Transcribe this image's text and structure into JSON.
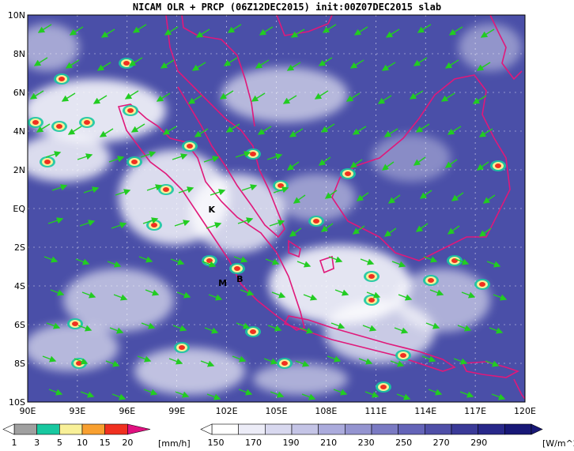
{
  "title": "NICAM OLR + PRCP (06Z12DEC2015) init:00Z07DEC2015 slab",
  "colors": {
    "olr_background": "#4a4fa8",
    "cloud": "#ffffff",
    "coastline": "#e0187a",
    "wind_arrow": "#22cc22",
    "grid": "#ffffff"
  },
  "map": {
    "lon_range": [
      90,
      120
    ],
    "lat_range": [
      -10,
      10
    ],
    "x_ticks": [
      "90E",
      "93E",
      "96E",
      "99E",
      "102E",
      "105E",
      "108E",
      "111E",
      "114E",
      "117E",
      "120E"
    ],
    "y_ticks": [
      "10N",
      "8N",
      "6N",
      "4N",
      "2N",
      "EQ",
      "2S",
      "4S",
      "6S",
      "8S",
      "10S"
    ],
    "markers": [
      {
        "id": "K",
        "label": "K",
        "lon": 100.9,
        "lat": -0.2
      },
      {
        "id": "M",
        "label": "M",
        "lon": 101.5,
        "lat": -4.0
      },
      {
        "id": "B",
        "label": "B",
        "lon": 102.6,
        "lat": -3.8
      }
    ]
  },
  "precip_colorbar": {
    "labels": [
      "1",
      "3",
      "5",
      "10",
      "15",
      "20"
    ],
    "units": "[mm/h]",
    "colors": [
      "#a0a0a0",
      "#18c8a0",
      "#f8f098",
      "#f8a030",
      "#f03020",
      "#e01080"
    ]
  },
  "olr_colorbar": {
    "labels": [
      "150",
      "170",
      "190",
      "210",
      "230",
      "250",
      "270",
      "290"
    ],
    "units": "[W/m^2]",
    "colors": [
      "#ffffff",
      "#ececf7",
      "#d8d8ef",
      "#c4c4e6",
      "#ababdc",
      "#9494d0",
      "#7a7ac3",
      "#6464b8",
      "#4f4fa8",
      "#3a3a98",
      "#28288a",
      "#181877"
    ]
  }
}
